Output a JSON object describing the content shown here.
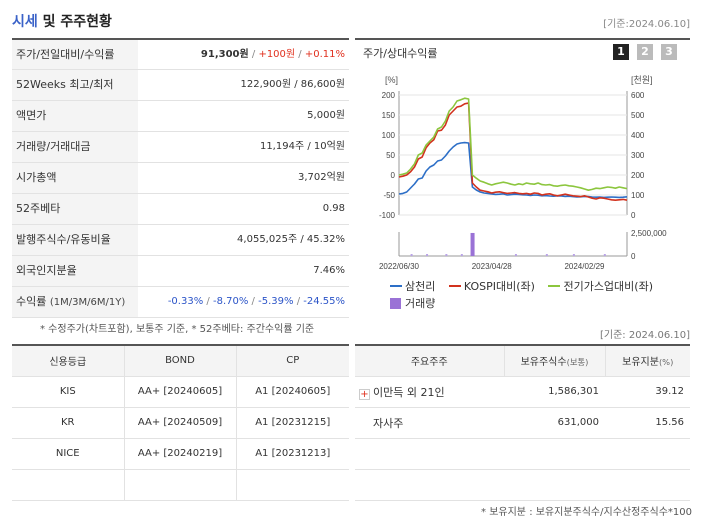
{
  "header": {
    "title_accent": "시세",
    "title_rest": " 및 주주현황",
    "date": "[기준:2024.06.10]"
  },
  "info": {
    "rows": [
      {
        "key": "주가/전일대비/수익률",
        "price": "91,300원",
        "sep1": " / ",
        "change": "+100원",
        "sep2": " / ",
        "rate": "+0.11%"
      },
      {
        "key": "52Weeks 최고/최저",
        "value": "122,900원 / 86,600원"
      },
      {
        "key": "액면가",
        "value": "5,000원"
      },
      {
        "key": "거래량/거래대금",
        "value": "11,194주 / 10억원"
      },
      {
        "key": "시가총액",
        "value": "3,702억원"
      },
      {
        "key": "52주베타",
        "value": "0.98"
      },
      {
        "key": "발행주식수/유동비율",
        "value": "4,055,025주 / 45.32%"
      },
      {
        "key": "외국인지분율",
        "value": "7.46%"
      },
      {
        "key": "수익률",
        "key_small": "(1M/3M/6M/1Y)",
        "r1": "-0.33%",
        "r2": "-8.70%",
        "r3": "-5.39%",
        "r4": "-24.55%",
        "sep": "/ "
      }
    ],
    "note": "* 수정주가(차트포함), 보통주 기준, * 52주베타: 주간수익률 기준"
  },
  "chart_panel": {
    "title": "주가/상대수익률",
    "pages": [
      "1",
      "2",
      "3"
    ],
    "legend": [
      {
        "label": "삼천리",
        "color": "#2d6fc7"
      },
      {
        "label": "KOSPI대비(좌)",
        "color": "#d2321e"
      },
      {
        "label": "전기가스업대비(좌)",
        "color": "#8cc63e"
      },
      {
        "label": "거래량",
        "color": "#9a72d6"
      }
    ]
  },
  "chart_data": {
    "type": "line",
    "left_axis": {
      "unit": "[%]",
      "ticks": [
        "200",
        "150",
        "100",
        "50",
        "0",
        "-50",
        "-100"
      ],
      "range": [
        -100,
        200
      ]
    },
    "right_axis": {
      "unit": "[천원]",
      "ticks": [
        "600",
        "500",
        "400",
        "300",
        "200",
        "100",
        "0"
      ],
      "range": [
        0,
        600
      ]
    },
    "volume_axis": {
      "ticks": [
        "2,500,000",
        "0"
      ],
      "range": [
        0,
        2500000
      ]
    },
    "x_ticks": [
      "2022/06/30",
      "2023/04/28",
      "2024/02/29"
    ],
    "x": [
      0,
      1,
      2,
      3,
      4,
      5,
      6,
      7,
      8,
      9,
      10,
      11,
      12,
      13,
      14,
      15,
      16,
      17,
      18,
      19,
      20,
      21,
      22,
      23,
      24,
      25,
      26,
      27,
      28,
      29,
      30,
      31,
      32,
      33,
      34,
      35,
      36,
      37,
      38,
      39,
      40,
      41,
      42,
      43,
      44,
      45,
      46,
      47,
      48,
      49,
      50,
      51,
      52,
      53,
      54,
      55,
      56,
      57,
      58,
      59
    ],
    "series": [
      {
        "name": "삼천리",
        "axis": "right",
        "values": [
          105,
          108,
          115,
          135,
          155,
          180,
          185,
          220,
          240,
          250,
          270,
          275,
          295,
          320,
          340,
          355,
          360,
          362,
          360,
          140,
          125,
          115,
          110,
          108,
          105,
          103,
          104,
          106,
          100,
          102,
          104,
          103,
          101,
          100,
          98,
          100,
          99,
          96,
          97,
          95,
          94,
          96,
          95,
          93,
          94,
          92,
          90,
          91,
          93,
          92,
          90,
          89,
          90,
          88,
          89,
          90,
          89,
          88,
          89,
          91
        ]
      },
      {
        "name": "KOSPI대비(좌)",
        "axis": "left",
        "values": [
          -5,
          -3,
          0,
          8,
          20,
          40,
          45,
          68,
          80,
          88,
          110,
          112,
          125,
          150,
          160,
          170,
          172,
          178,
          180,
          -20,
          -30,
          -38,
          -40,
          -42,
          -45,
          -43,
          -42,
          -44,
          -46,
          -45,
          -44,
          -46,
          -47,
          -46,
          -48,
          -45,
          -46,
          -50,
          -48,
          -47,
          -50,
          -52,
          -50,
          -48,
          -50,
          -52,
          -53,
          -54,
          -52,
          -55,
          -58,
          -60,
          -57,
          -58,
          -60,
          -62,
          -63,
          -62,
          -61,
          -63
        ]
      },
      {
        "name": "전기가스업대비(좌)",
        "axis": "left",
        "values": [
          0,
          2,
          5,
          15,
          28,
          50,
          55,
          75,
          85,
          95,
          115,
          120,
          135,
          160,
          170,
          185,
          188,
          192,
          190,
          0,
          -8,
          -15,
          -18,
          -22,
          -25,
          -22,
          -20,
          -18,
          -20,
          -23,
          -25,
          -22,
          -24,
          -20,
          -22,
          -23,
          -20,
          -24,
          -25,
          -24,
          -27,
          -28,
          -26,
          -25,
          -27,
          -28,
          -30,
          -32,
          -35,
          -38,
          -36,
          -33,
          -34,
          -32,
          -30,
          -31,
          -33,
          -30,
          -32,
          -34
        ]
      }
    ],
    "volume": {
      "peak_index": 18,
      "peak_value": 2400000
    }
  },
  "bottom": {
    "date": "[기준: 2024.06.10]",
    "credit": {
      "headers": [
        "신용등급",
        "BOND",
        "CP"
      ],
      "rows": [
        [
          "KIS",
          "AA+ [20240605]",
          "A1 [20240605]"
        ],
        [
          "KR",
          "AA+ [20240509]",
          "A1 [20231215]"
        ],
        [
          "NICE",
          "AA+ [20240219]",
          "A1 [20231213]"
        ]
      ]
    },
    "holders": {
      "headers": [
        "주요주주",
        "보유주식수",
        "(보통)",
        "보유지분",
        "(%)"
      ],
      "rows": [
        {
          "name": "이만득 외 21인",
          "shares": "1,586,301",
          "pct": "39.12",
          "expand": "+"
        },
        {
          "name": "자사주",
          "shares": "631,000",
          "pct": "15.56"
        }
      ]
    },
    "note": "* 보유지분 : 보유지분주식수/지수산정주식수*100"
  }
}
